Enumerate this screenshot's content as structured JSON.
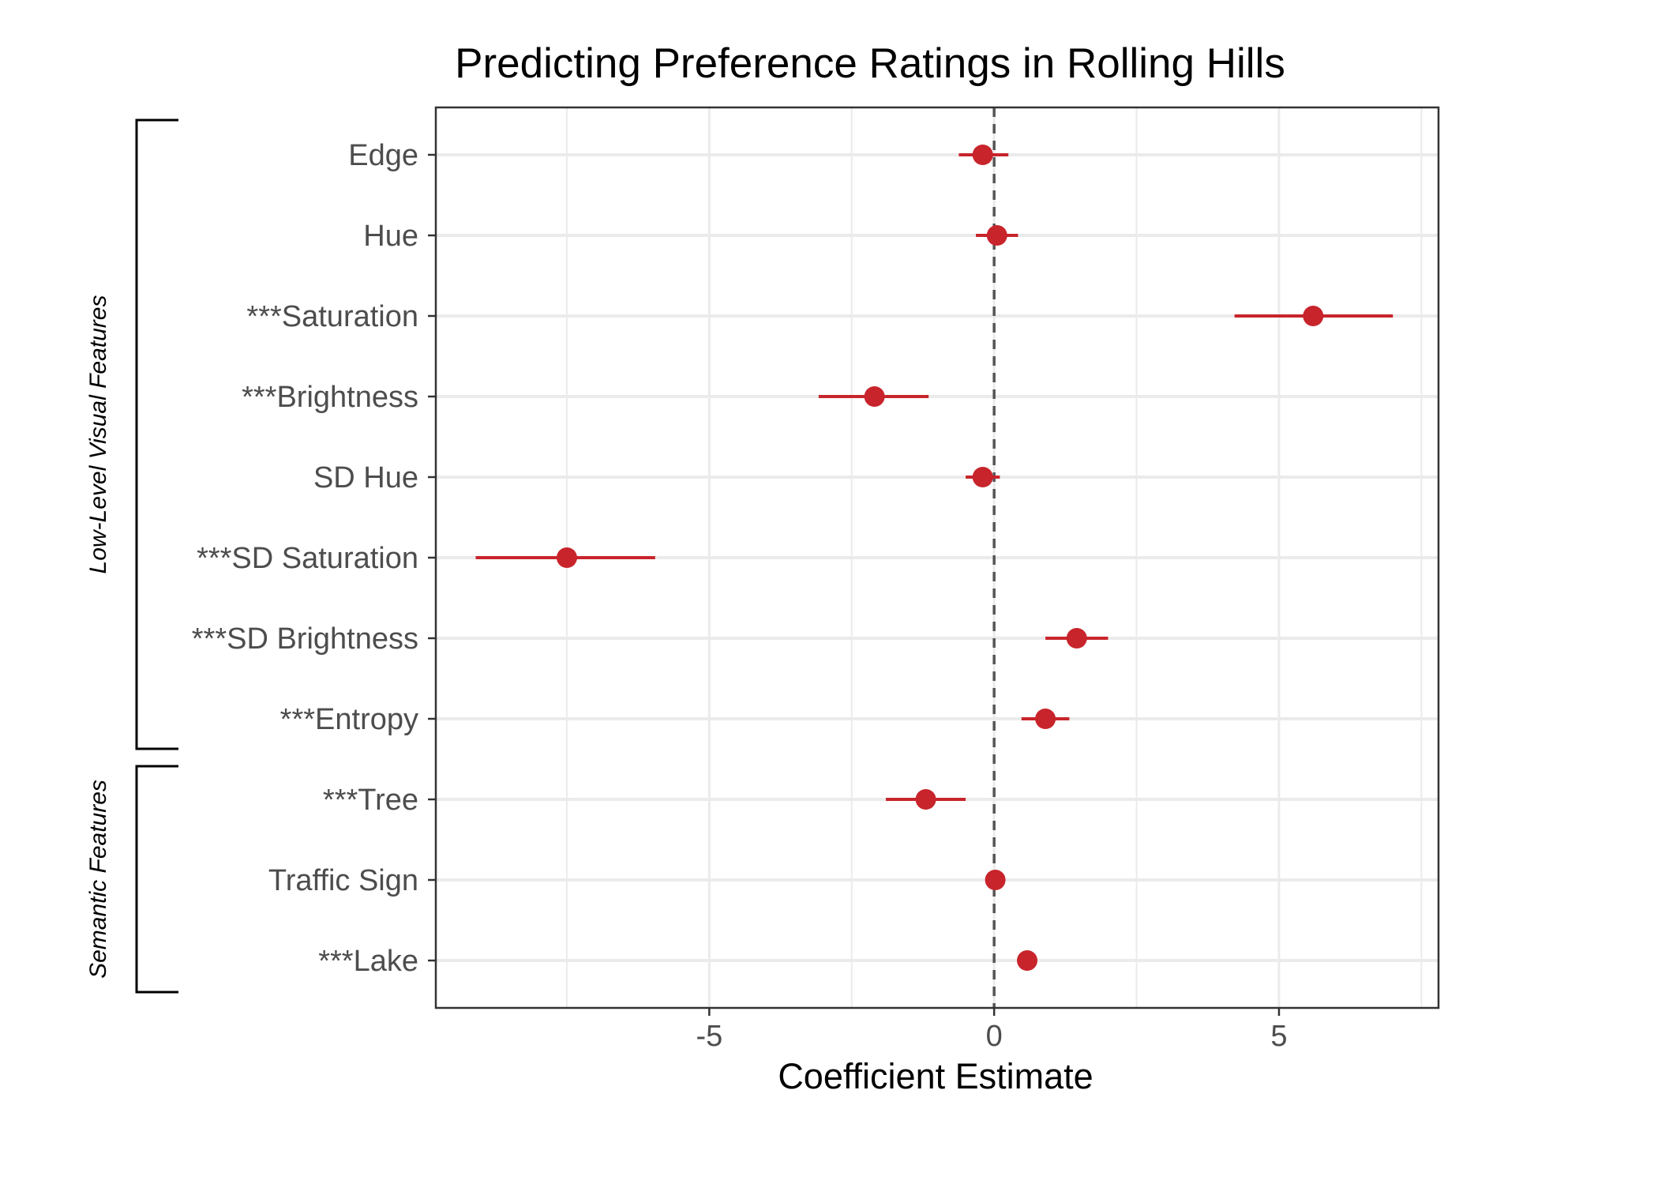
{
  "chart_data": {
    "type": "scatter",
    "subtype": "coefficient plot with horizontal error bars",
    "title": "Predicting Preference Ratings in Rolling Hills",
    "xlabel": "Coefficient Estimate",
    "ylabel": "",
    "xlim": [
      -9.8,
      7.8
    ],
    "xticks": [
      -5,
      0,
      5
    ],
    "xtick_labels": [
      "-5",
      "0",
      "5"
    ],
    "reference_line": {
      "x": 0,
      "style": "dashed"
    },
    "grid": true,
    "legend": "none",
    "colors": {
      "point": "#c8242b",
      "errorbar": "#c8242b",
      "grid": "#ebebeb",
      "refline": "#555555"
    },
    "categories": [
      "Edge",
      "Hue",
      "***Saturation",
      "***Brightness",
      "SD Hue",
      "***SD Saturation",
      "***SD Brightness",
      "***Entropy",
      "***Tree",
      "Traffic Sign",
      "***Lake"
    ],
    "series": [
      {
        "estimate": [
          -0.2,
          0.05,
          5.6,
          -2.1,
          -0.2,
          -7.5,
          1.45,
          0.9,
          -1.2,
          0.02,
          0.58
        ],
        "ci_low": [
          -0.62,
          -0.32,
          4.22,
          -3.08,
          -0.5,
          -9.1,
          0.9,
          0.48,
          -1.9,
          -0.08,
          0.5
        ],
        "ci_high": [
          0.25,
          0.42,
          7.0,
          -1.15,
          0.1,
          -5.95,
          2.0,
          1.32,
          -0.5,
          0.1,
          0.66
        ]
      }
    ],
    "groups": [
      {
        "label": "Low-Level Visual Features",
        "from": 0,
        "to": 7
      },
      {
        "label": "Semantic Features",
        "from": 8,
        "to": 10
      }
    ]
  }
}
